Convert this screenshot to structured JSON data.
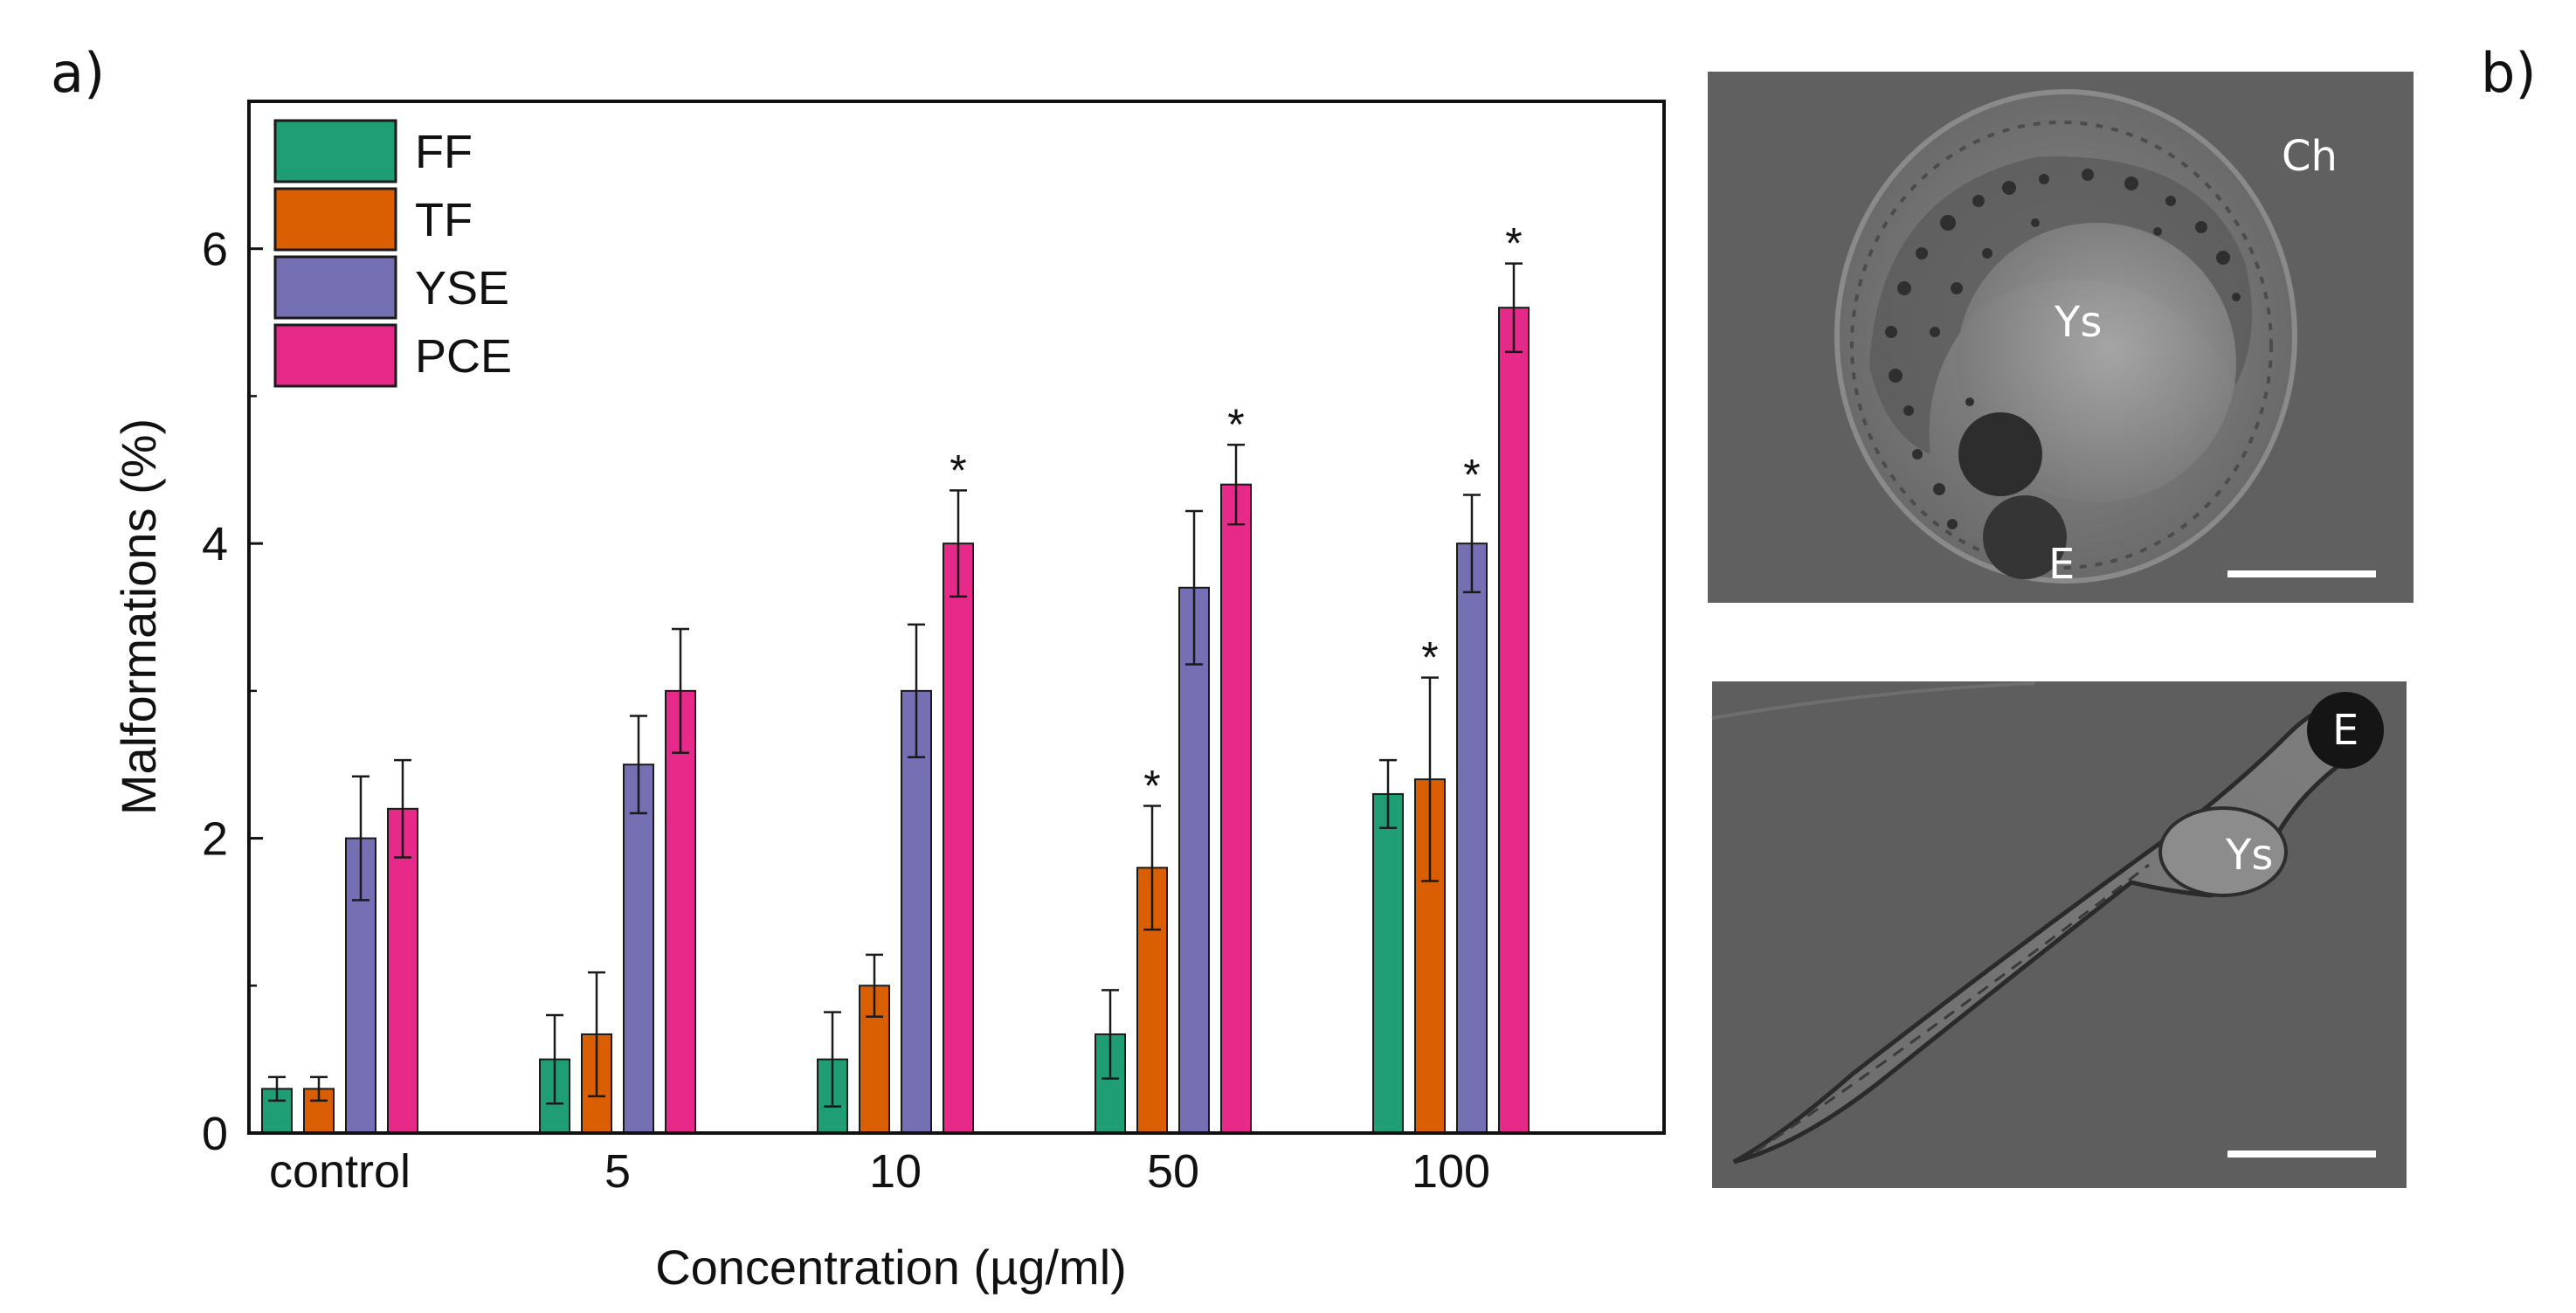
{
  "panels": {
    "a": "a)",
    "b": "b)"
  },
  "chart_data": {
    "type": "bar",
    "xlabel": "Concentration (µg/ml)",
    "ylabel": "Malformations (%)",
    "ylim": [
      0,
      7
    ],
    "yticks": [
      0,
      2,
      4,
      6
    ],
    "categories": [
      "control",
      "5",
      "10",
      "50",
      "100"
    ],
    "legend_position": "top-left",
    "series": [
      {
        "name": "FF",
        "color": "#1f9e76",
        "values": [
          0.3,
          0.5,
          0.5,
          0.67,
          2.3
        ],
        "errors": [
          0.08,
          0.3,
          0.32,
          0.3,
          0.23
        ],
        "significant": [
          false,
          false,
          false,
          false,
          false
        ]
      },
      {
        "name": "TF",
        "color": "#d95f02",
        "values": [
          0.3,
          0.67,
          1.0,
          1.8,
          2.4
        ],
        "errors": [
          0.08,
          0.42,
          0.21,
          0.42,
          0.69
        ],
        "significant": [
          false,
          false,
          false,
          true,
          true
        ]
      },
      {
        "name": "YSE",
        "color": "#7570b3",
        "values": [
          2.0,
          2.5,
          3.0,
          3.7,
          4.0
        ],
        "errors": [
          0.42,
          0.33,
          0.45,
          0.52,
          0.33
        ],
        "significant": [
          false,
          false,
          false,
          false,
          true
        ]
      },
      {
        "name": "PCE",
        "color": "#e7298a",
        "values": [
          2.2,
          3.0,
          4.0,
          4.4,
          5.6
        ],
        "errors": [
          0.33,
          0.42,
          0.36,
          0.27,
          0.3
        ],
        "significant": [
          false,
          false,
          true,
          true,
          true
        ]
      }
    ],
    "significance_marker": "*"
  },
  "micrographs": {
    "embryo": {
      "labels": {
        "chorion": "Ch",
        "yolk_sac": "Ys",
        "eye": "E"
      }
    },
    "larva": {
      "labels": {
        "eye": "E",
        "yolk_sac": "Ys"
      }
    }
  }
}
